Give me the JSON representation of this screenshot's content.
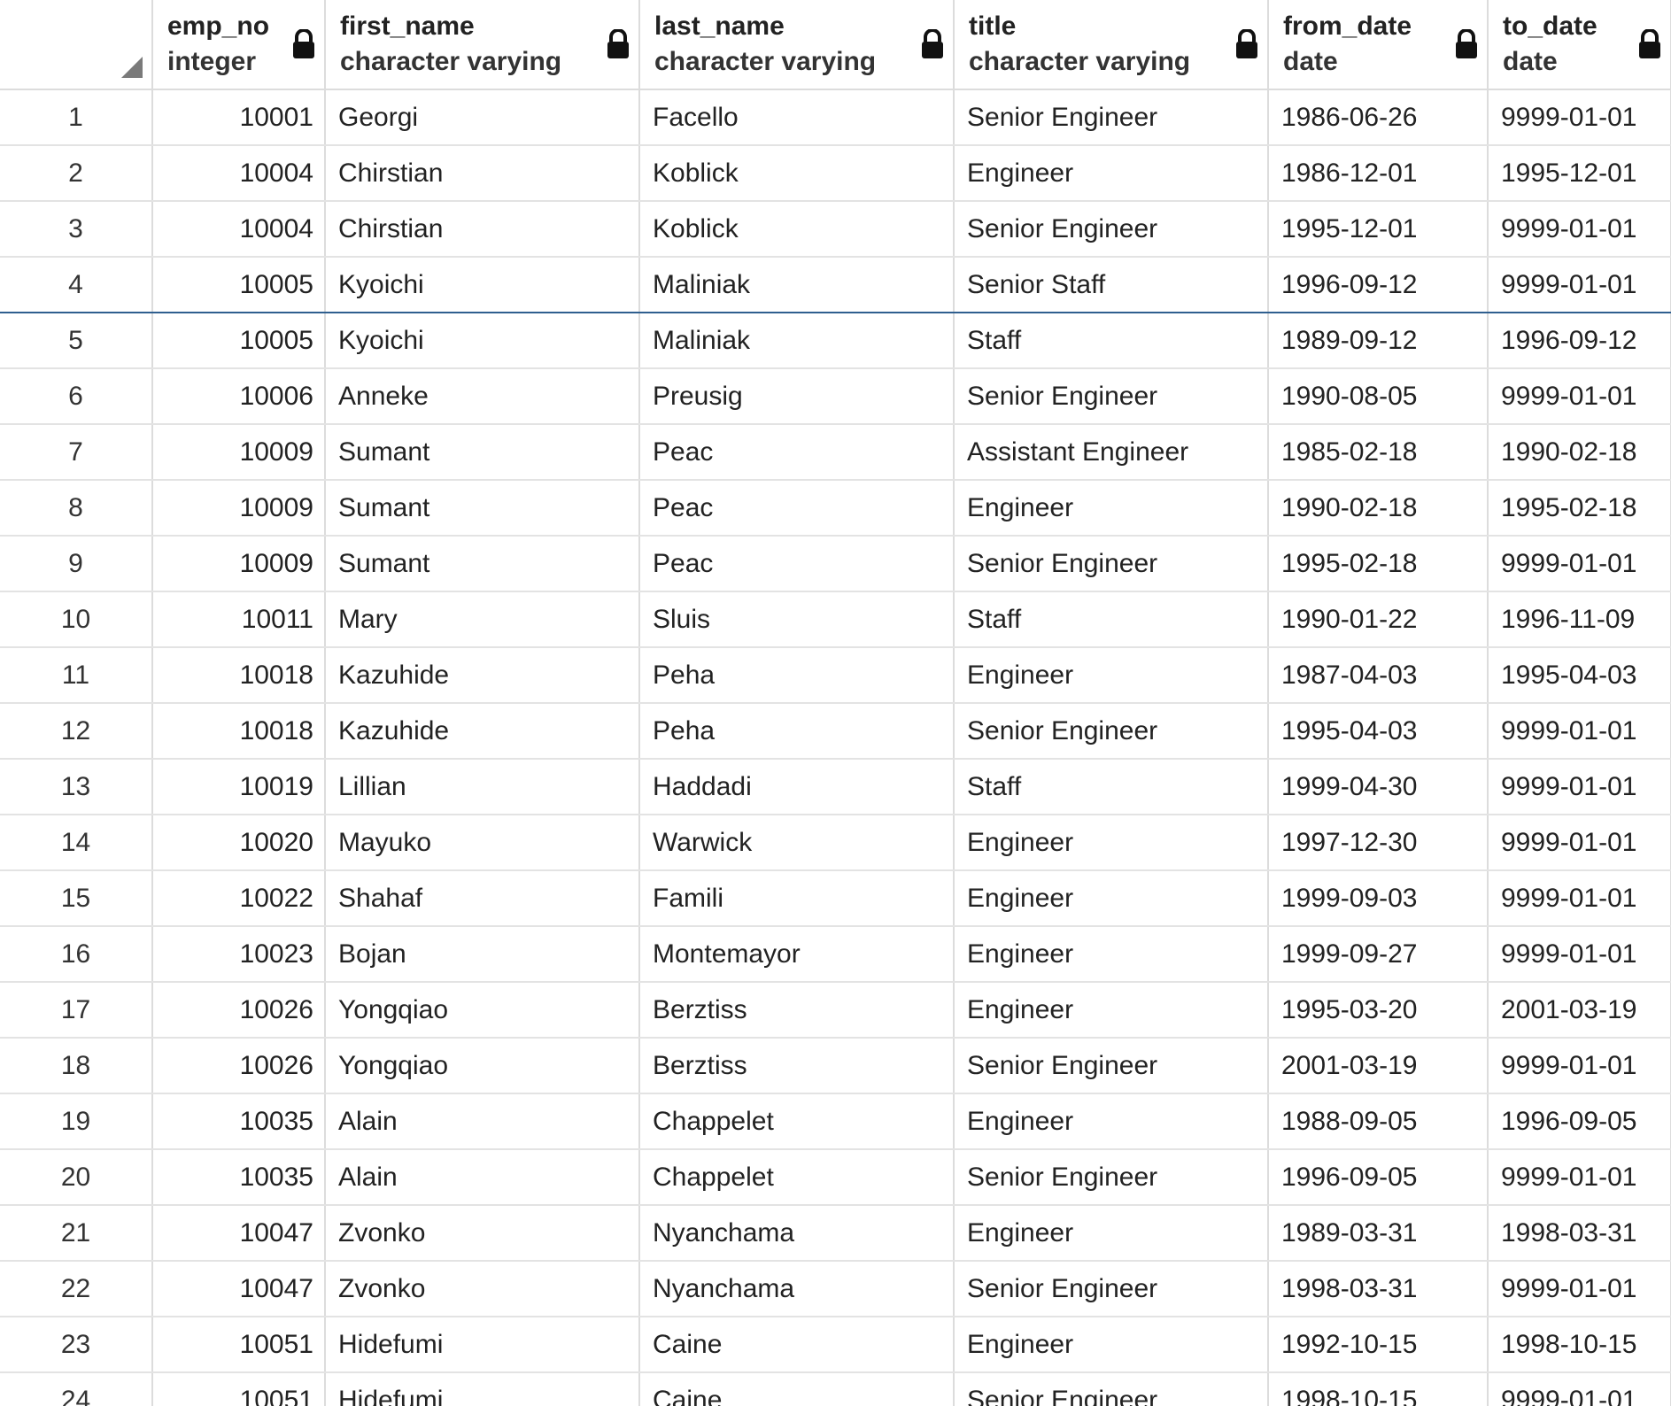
{
  "columns": [
    {
      "name": "emp_no",
      "type": "integer"
    },
    {
      "name": "first_name",
      "type": "character varying"
    },
    {
      "name": "last_name",
      "type": "character varying"
    },
    {
      "name": "title",
      "type": "character varying"
    },
    {
      "name": "from_date",
      "type": "date"
    },
    {
      "name": "to_date",
      "type": "date"
    }
  ],
  "selected_row": 4,
  "rows": [
    {
      "n": "1",
      "emp_no": "10001",
      "first_name": "Georgi",
      "last_name": "Facello",
      "title": "Senior Engineer",
      "from_date": "1986-06-26",
      "to_date": "9999-01-01"
    },
    {
      "n": "2",
      "emp_no": "10004",
      "first_name": "Chirstian",
      "last_name": "Koblick",
      "title": "Engineer",
      "from_date": "1986-12-01",
      "to_date": "1995-12-01"
    },
    {
      "n": "3",
      "emp_no": "10004",
      "first_name": "Chirstian",
      "last_name": "Koblick",
      "title": "Senior Engineer",
      "from_date": "1995-12-01",
      "to_date": "9999-01-01"
    },
    {
      "n": "4",
      "emp_no": "10005",
      "first_name": "Kyoichi",
      "last_name": "Maliniak",
      "title": "Senior Staff",
      "from_date": "1996-09-12",
      "to_date": "9999-01-01"
    },
    {
      "n": "5",
      "emp_no": "10005",
      "first_name": "Kyoichi",
      "last_name": "Maliniak",
      "title": "Staff",
      "from_date": "1989-09-12",
      "to_date": "1996-09-12"
    },
    {
      "n": "6",
      "emp_no": "10006",
      "first_name": "Anneke",
      "last_name": "Preusig",
      "title": "Senior Engineer",
      "from_date": "1990-08-05",
      "to_date": "9999-01-01"
    },
    {
      "n": "7",
      "emp_no": "10009",
      "first_name": "Sumant",
      "last_name": "Peac",
      "title": "Assistant Engineer",
      "from_date": "1985-02-18",
      "to_date": "1990-02-18"
    },
    {
      "n": "8",
      "emp_no": "10009",
      "first_name": "Sumant",
      "last_name": "Peac",
      "title": "Engineer",
      "from_date": "1990-02-18",
      "to_date": "1995-02-18"
    },
    {
      "n": "9",
      "emp_no": "10009",
      "first_name": "Sumant",
      "last_name": "Peac",
      "title": "Senior Engineer",
      "from_date": "1995-02-18",
      "to_date": "9999-01-01"
    },
    {
      "n": "10",
      "emp_no": "10011",
      "first_name": "Mary",
      "last_name": "Sluis",
      "title": "Staff",
      "from_date": "1990-01-22",
      "to_date": "1996-11-09"
    },
    {
      "n": "11",
      "emp_no": "10018",
      "first_name": "Kazuhide",
      "last_name": "Peha",
      "title": "Engineer",
      "from_date": "1987-04-03",
      "to_date": "1995-04-03"
    },
    {
      "n": "12",
      "emp_no": "10018",
      "first_name": "Kazuhide",
      "last_name": "Peha",
      "title": "Senior Engineer",
      "from_date": "1995-04-03",
      "to_date": "9999-01-01"
    },
    {
      "n": "13",
      "emp_no": "10019",
      "first_name": "Lillian",
      "last_name": "Haddadi",
      "title": "Staff",
      "from_date": "1999-04-30",
      "to_date": "9999-01-01"
    },
    {
      "n": "14",
      "emp_no": "10020",
      "first_name": "Mayuko",
      "last_name": "Warwick",
      "title": "Engineer",
      "from_date": "1997-12-30",
      "to_date": "9999-01-01"
    },
    {
      "n": "15",
      "emp_no": "10022",
      "first_name": "Shahaf",
      "last_name": "Famili",
      "title": "Engineer",
      "from_date": "1999-09-03",
      "to_date": "9999-01-01"
    },
    {
      "n": "16",
      "emp_no": "10023",
      "first_name": "Bojan",
      "last_name": "Montemayor",
      "title": "Engineer",
      "from_date": "1999-09-27",
      "to_date": "9999-01-01"
    },
    {
      "n": "17",
      "emp_no": "10026",
      "first_name": "Yongqiao",
      "last_name": "Berztiss",
      "title": "Engineer",
      "from_date": "1995-03-20",
      "to_date": "2001-03-19"
    },
    {
      "n": "18",
      "emp_no": "10026",
      "first_name": "Yongqiao",
      "last_name": "Berztiss",
      "title": "Senior Engineer",
      "from_date": "2001-03-19",
      "to_date": "9999-01-01"
    },
    {
      "n": "19",
      "emp_no": "10035",
      "first_name": "Alain",
      "last_name": "Chappelet",
      "title": "Engineer",
      "from_date": "1988-09-05",
      "to_date": "1996-09-05"
    },
    {
      "n": "20",
      "emp_no": "10035",
      "first_name": "Alain",
      "last_name": "Chappelet",
      "title": "Senior Engineer",
      "from_date": "1996-09-05",
      "to_date": "9999-01-01"
    },
    {
      "n": "21",
      "emp_no": "10047",
      "first_name": "Zvonko",
      "last_name": "Nyanchama",
      "title": "Engineer",
      "from_date": "1989-03-31",
      "to_date": "1998-03-31"
    },
    {
      "n": "22",
      "emp_no": "10047",
      "first_name": "Zvonko",
      "last_name": "Nyanchama",
      "title": "Senior Engineer",
      "from_date": "1998-03-31",
      "to_date": "9999-01-01"
    },
    {
      "n": "23",
      "emp_no": "10051",
      "first_name": "Hidefumi",
      "last_name": "Caine",
      "title": "Engineer",
      "from_date": "1992-10-15",
      "to_date": "1998-10-15"
    },
    {
      "n": "24",
      "emp_no": "10051",
      "first_name": "Hidefumi",
      "last_name": "Caine",
      "title": "Senior Engineer",
      "from_date": "1998-10-15",
      "to_date": "9999-01-01"
    }
  ]
}
